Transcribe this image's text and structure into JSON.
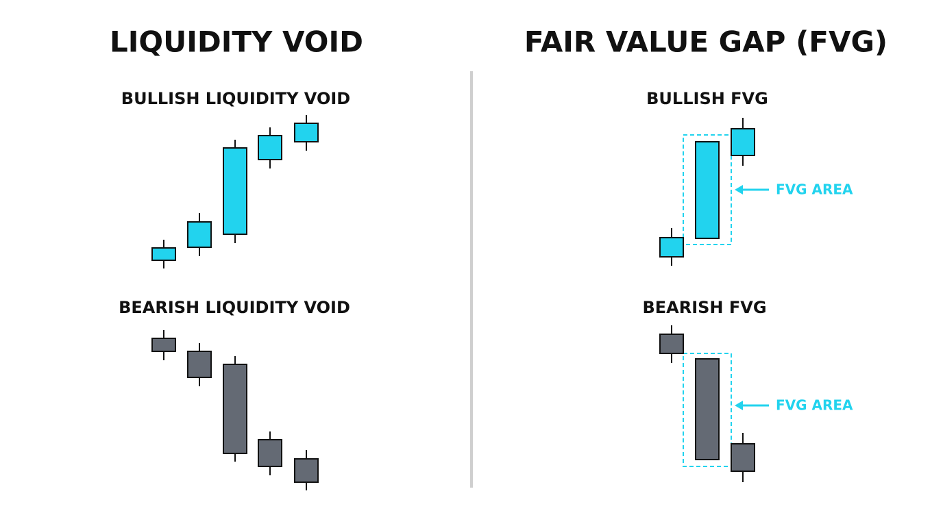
{
  "left": {
    "title": "LIQUIDITY VOID",
    "bullish": "BULLISH LIQUIDITY VOID",
    "bearish": "BEARISH LIQUIDITY VOID"
  },
  "right": {
    "title": "FAIR VALUE GAP (FVG)",
    "bullish": {
      "label": "BULLISH FVG",
      "annotation": "FVG AREA"
    },
    "bearish": {
      "label": "BEARISH FVG",
      "annotation": "FVG AREA"
    }
  }
}
